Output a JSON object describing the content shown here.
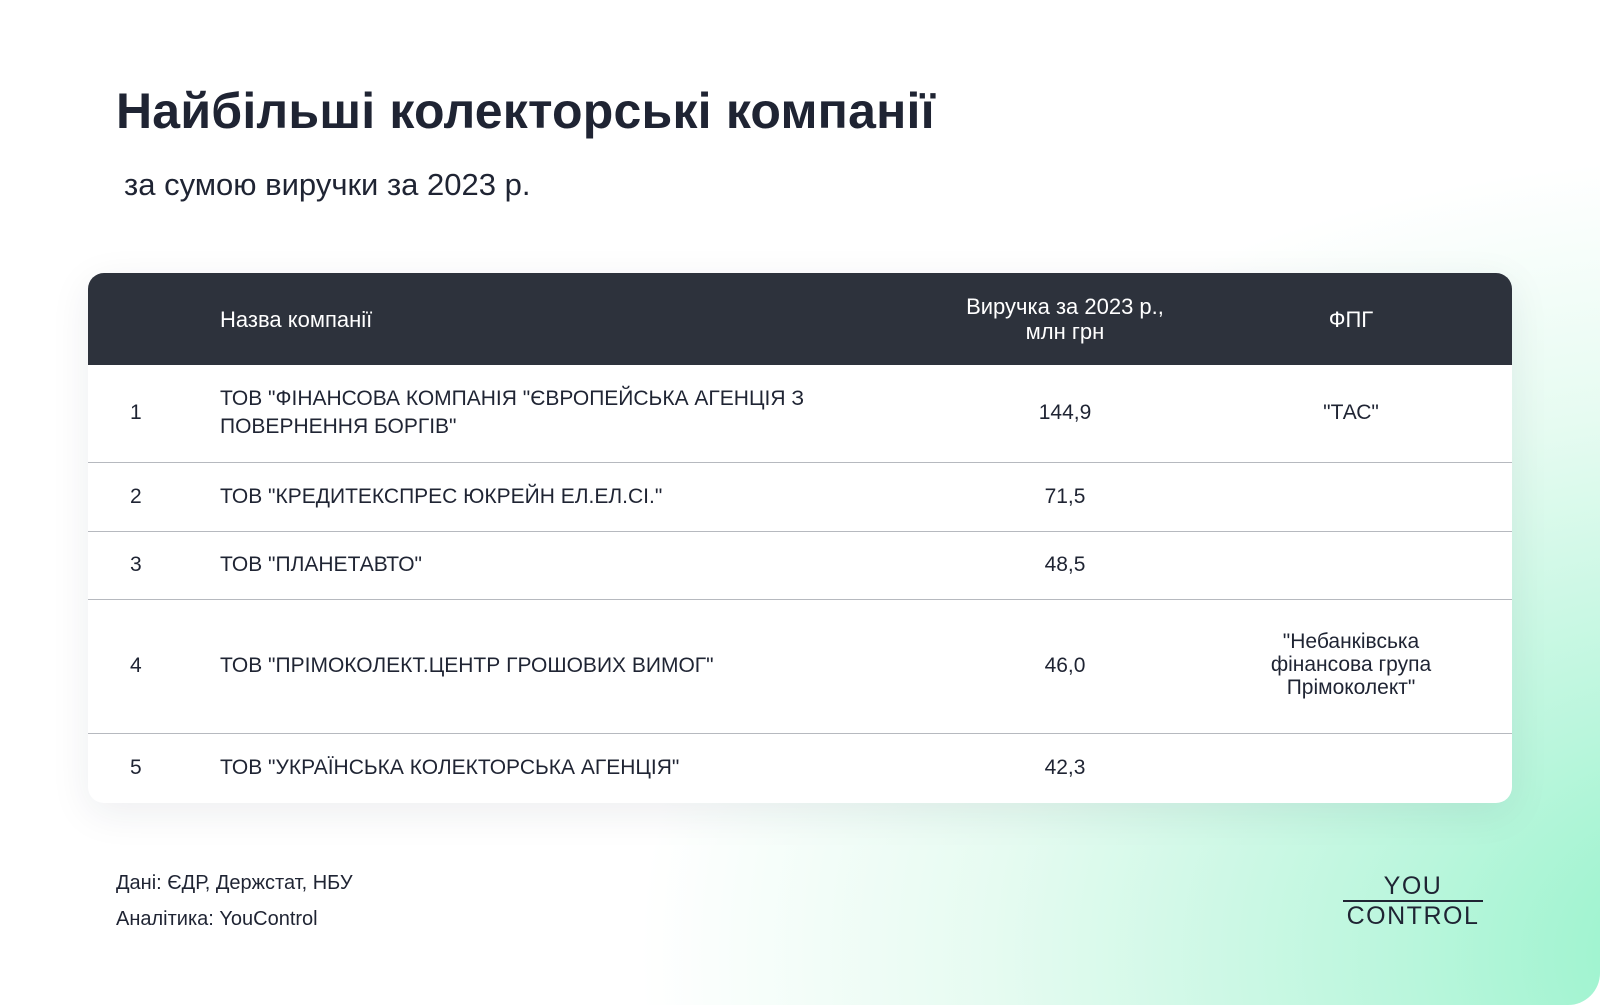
{
  "title": "Найбільші колекторські компанії",
  "subtitle": "за сумою виручки за 2023 р.",
  "chart_data": {
    "type": "table",
    "columns": [
      "",
      "Назва компанії",
      "Виручка за 2023 р., млн грн",
      "ФПГ"
    ],
    "header": {
      "name": "Назва компанії",
      "revenue_line1": "Виручка за 2023 р.,",
      "revenue_line2": "млн грн",
      "fpg": "ФПГ"
    },
    "rows": [
      {
        "rank": "1",
        "name": "ТОВ \"ФІНАНСОВА КОМПАНІЯ \"ЄВРОПЕЙСЬКА АГЕНЦІЯ З ПОВЕРНЕННЯ БОРГІВ\"",
        "revenue": "144,9",
        "fpg": "\"ТАС\""
      },
      {
        "rank": "2",
        "name": "ТОВ \"КРЕДИТЕКСПРЕС ЮКРЕЙН ЕЛ.ЕЛ.СІ.\"",
        "revenue": "71,5",
        "fpg": ""
      },
      {
        "rank": "3",
        "name": "ТОВ \"ПЛАНЕТАВТО\"",
        "revenue": "48,5",
        "fpg": ""
      },
      {
        "rank": "4",
        "name": "ТОВ \"ПРІМОКОЛЕКТ.ЦЕНТР ГРОШОВИХ ВИМОГ\"",
        "revenue": "46,0",
        "fpg": "\"Небанківська фінансова група Прімоколект\""
      },
      {
        "rank": "5",
        "name": "ТОВ \"УКРАЇНСЬКА КОЛЕКТОРСЬКА АГЕНЦІЯ\"",
        "revenue": "42,3",
        "fpg": ""
      }
    ]
  },
  "footer": {
    "source": "Дані: ЄДР, Держстат, НБУ",
    "analytics": "Аналітика: YouControl"
  },
  "logo": {
    "line1": "YOU",
    "line2": "CONTROL"
  },
  "colors": {
    "header_bg": "#2d323c",
    "text": "#1f2433",
    "accent_green": "#8ef2c7"
  }
}
